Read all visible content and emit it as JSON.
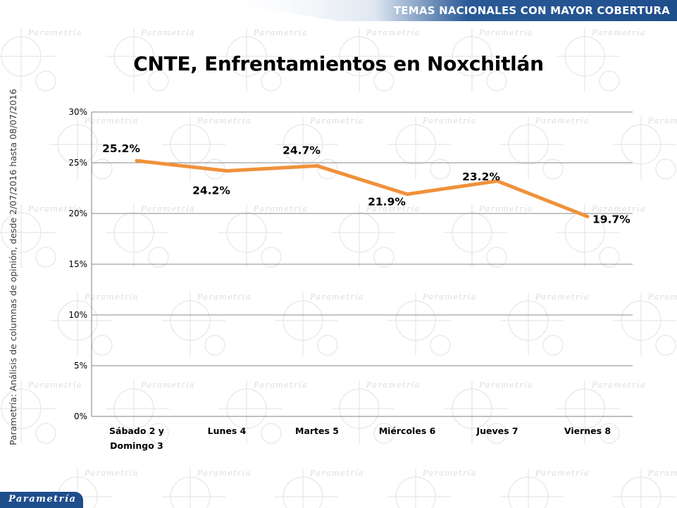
{
  "header": {
    "title": "TEMAS NACIONALES CON MAYOR COBERTURA"
  },
  "source_note": "Parametría: Análisis de columnas de opinión, desde 2/07/2016 hasta  08/07/2016",
  "footer": {
    "logo_text": "Parametría"
  },
  "watermark_text": "Parametría",
  "colors": {
    "line": "#f0913a",
    "header_band": "#1f4e8c",
    "grid": "#8a8a8a"
  },
  "chart_data": {
    "type": "line",
    "title": "CNTE, Enfrentamientos en Noxchitlán",
    "categories": [
      [
        "Sábado 2 y",
        "Domingo 3"
      ],
      [
        "Lunes 4"
      ],
      [
        "Martes 5"
      ],
      [
        "Miércoles 6"
      ],
      [
        "Jueves 7"
      ],
      [
        "Viernes 8"
      ]
    ],
    "series": [
      {
        "values": [
          25.2,
          24.2,
          24.7,
          21.9,
          23.2,
          19.7
        ],
        "labels": [
          "25.2%",
          "24.2%",
          "24.7%",
          "21.9%",
          "23.2%",
          "19.7%"
        ]
      }
    ],
    "ylim": [
      0,
      30
    ],
    "yticks": [
      0,
      5,
      10,
      15,
      20,
      25,
      30
    ],
    "ytick_labels": [
      "0%",
      "5%",
      "10%",
      "15%",
      "20%",
      "25%",
      "30%"
    ],
    "grid": true,
    "legend": "none"
  }
}
